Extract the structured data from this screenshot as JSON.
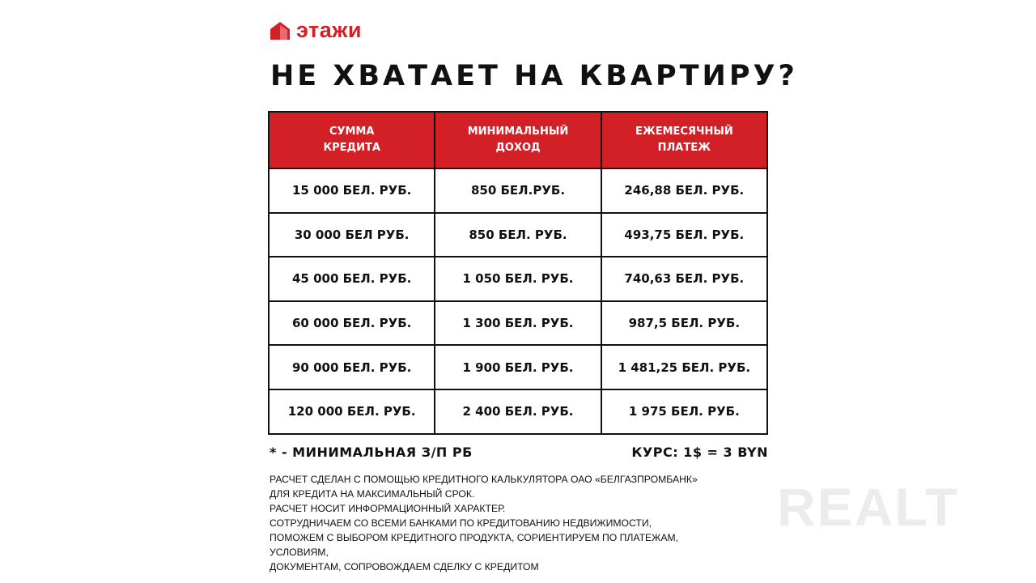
{
  "brand": {
    "logo_text": "этажи",
    "color": "#d32027"
  },
  "title": "НЕ ХВАТАЕТ НА КВАРТИРУ?",
  "table": {
    "headers": [
      "СУММА\nКРЕДИТА",
      "МИНИМАЛЬНЫЙ\nДОХОД",
      "ЕЖЕМЕСЯЧНЫЙ\nПЛАТЕЖ"
    ],
    "rows": [
      [
        "15 000 БЕЛ. РУБ.",
        "850 БЕЛ.РУБ.",
        "246,88 БЕЛ. РУБ."
      ],
      [
        "30 000 БЕЛ РУБ.",
        "850 БЕЛ. РУБ.",
        "493,75 БЕЛ. РУБ."
      ],
      [
        "45 000 БЕЛ. РУБ.",
        "1 050 БЕЛ. РУБ.",
        "740,63 БЕЛ. РУБ."
      ],
      [
        "60 000 БЕЛ. РУБ.",
        "1 300 БЕЛ. РУБ.",
        "987,5 БЕЛ. РУБ."
      ],
      [
        "90 000 БЕЛ. РУБ.",
        "1 900 БЕЛ. РУБ.",
        "1 481,25 БЕЛ. РУБ."
      ],
      [
        "120 000 БЕЛ. РУБ.",
        "2 400 БЕЛ. РУБ.",
        "1 975 БЕЛ. РУБ."
      ]
    ]
  },
  "footnote": "* - МИНИМАЛЬНАЯ З/П РБ",
  "rate": "КУРС: 1$ = 3 BYN",
  "notes": [
    "РАСЧЕТ СДЕЛАН С ПОМОЩЬЮ КРЕДИТНОГО КАЛЬКУЛЯТОРА ОАО «БЕЛГАЗПРОМБАНК»",
    "ДЛЯ КРЕДИТА  НА МАКСИМАЛЬНЫЙ СРОК.",
    "РАСЧЕТ НОСИТ ИНФОРМАЦИОННЫЙ ХАРАКТЕР.",
    "СОТРУДНИЧАЕМ СО ВСЕМИ БАНКАМИ ПО КРЕДИТОВАНИЮ НЕДВИЖИМОСТИ,",
    "ПОМОЖЕМ С ВЫБОРОМ КРЕДИТНОГО ПРОДУКТА, СОРИЕНТИРУЕМ ПО ПЛАТЕЖАМ,",
    "УСЛОВИЯМ,",
    "ДОКУМЕНТАМ, СОПРОВОЖДАЕМ СДЕЛКУ С КРЕДИТОМ"
  ],
  "watermark": "REALT"
}
